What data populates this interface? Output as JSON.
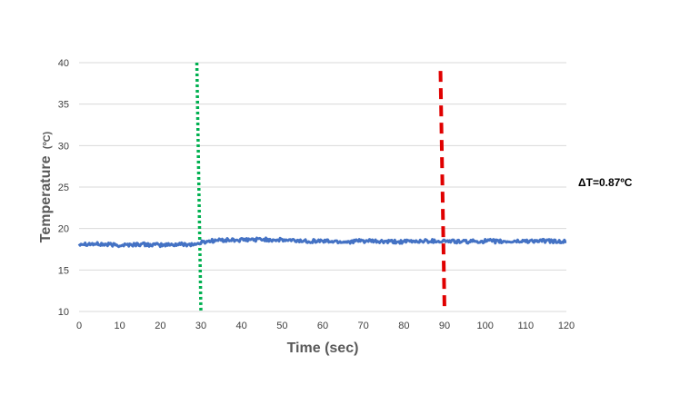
{
  "chart_data": {
    "type": "line",
    "title": "",
    "xlabel": "Time (sec)",
    "ylabel_main": "Temperature",
    "ylabel_unit": "(ºC)",
    "xlim": [
      0,
      120
    ],
    "ylim": [
      10,
      40
    ],
    "x_ticks": [
      0,
      10,
      20,
      30,
      40,
      50,
      60,
      70,
      80,
      90,
      100,
      110,
      120
    ],
    "y_ticks": [
      10,
      15,
      20,
      25,
      30,
      35,
      40
    ],
    "grid": "horizontal",
    "legend": "none",
    "series": [
      {
        "color": "#4472C4",
        "x": [
          0,
          5,
          10,
          15,
          20,
          25,
          29,
          30,
          32,
          35,
          40,
          45,
          50,
          55,
          60,
          65,
          70,
          75,
          80,
          85,
          90,
          95,
          100,
          105,
          110,
          115,
          120
        ],
        "y": [
          18.2,
          18.1,
          18.0,
          18.1,
          18.0,
          18.1,
          18.1,
          18.3,
          18.5,
          18.6,
          18.6,
          18.7,
          18.6,
          18.5,
          18.5,
          18.4,
          18.5,
          18.4,
          18.4,
          18.5,
          18.5,
          18.4,
          18.5,
          18.4,
          18.5,
          18.5,
          18.4
        ]
      }
    ],
    "vertical_lines": [
      {
        "x_top": 29.0,
        "x_bottom": 30.0,
        "y_top": 40,
        "color": "#00B050",
        "style": "dotted"
      },
      {
        "x_top": 89.0,
        "x_bottom": 90.0,
        "y_top": 39,
        "color": "#E00000",
        "style": "dashed"
      }
    ],
    "annotations": [
      {
        "text": "ΔT=0.87ºC"
      }
    ]
  }
}
